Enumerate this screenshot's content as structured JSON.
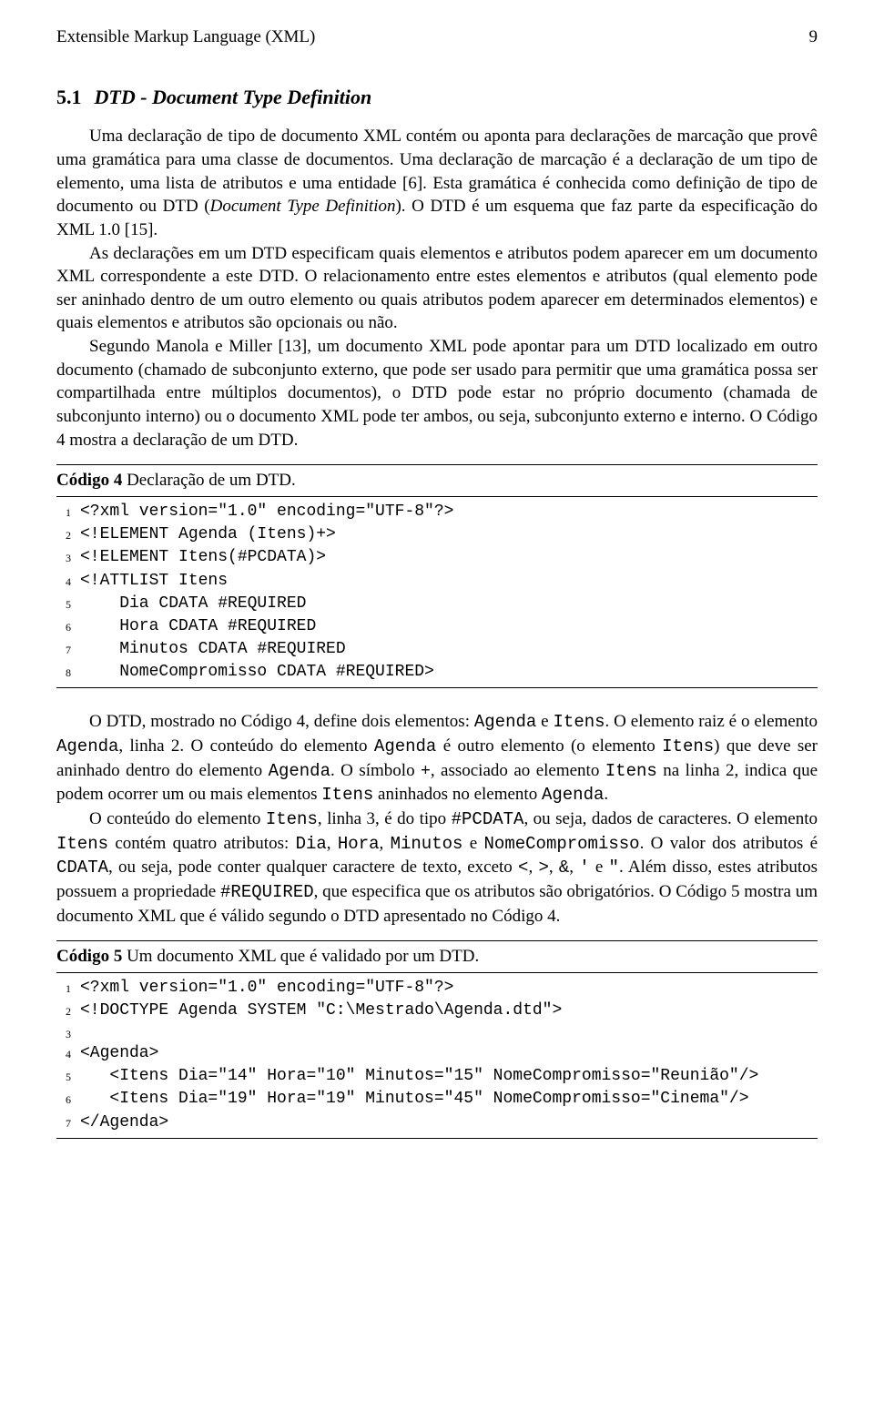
{
  "header": {
    "title": "Extensible Markup Language (XML)",
    "page": "9"
  },
  "section": {
    "number": "5.1",
    "title": "DTD - Document Type Definition"
  },
  "p1_a": "Uma declaração de tipo de documento XML contém ou aponta para declarações de marcação que provê uma gramática para uma classe de documentos. Uma declaração de marcação é a declaração de um tipo de elemento, uma lista de atributos e uma entidade [6]. Esta gramática é conhecida como definição de tipo de documento ou DTD (",
  "p1_b": "Document Type Definition",
  "p1_c": "). O DTD é um esquema que faz parte da especificação do XML 1.0 [15].",
  "p2": "As declarações em um DTD especificam quais elementos e atributos podem aparecer em um documento XML correspondente a este DTD. O relacionamento entre estes elementos e atributos (qual elemento pode ser aninhado dentro de um outro elemento ou quais atributos podem aparecer em determinados elementos) e quais elementos e atributos são opcionais ou não.",
  "p3": "Segundo Manola e Miller [13], um documento XML pode apontar para um DTD localizado em outro documento (chamado de subconjunto externo, que pode ser usado para permitir que uma gramática possa ser compartilhada entre múltiplos documentos), o DTD pode estar no próprio documento (chamada de subconjunto interno) ou o documento XML pode ter ambos, ou seja, subconjunto externo e interno. O Código 4 mostra a declaração de um DTD.",
  "code4": {
    "caption_bold": "Código 4",
    "caption_rest": " Declaração de um DTD.",
    "lines": [
      "<?xml version=\"1.0\" encoding=\"UTF-8\"?>",
      "<!ELEMENT Agenda (Itens)+>",
      "<!ELEMENT Itens(#PCDATA)>",
      "<!ATTLIST Itens",
      "    Dia CDATA #REQUIRED",
      "    Hora CDATA #REQUIRED",
      "    Minutos CDATA #REQUIRED",
      "    NomeCompromisso CDATA #REQUIRED>"
    ]
  },
  "p4_parts": [
    {
      "t": "O DTD, mostrado no Código 4, define dois elementos: "
    },
    {
      "m": "Agenda"
    },
    {
      "t": " e "
    },
    {
      "m": "Itens"
    },
    {
      "t": ". O elemento raiz é o elemento "
    },
    {
      "m": "Agenda"
    },
    {
      "t": ", linha 2. O conteúdo do elemento "
    },
    {
      "m": "Agenda"
    },
    {
      "t": " é outro elemento (o elemento "
    },
    {
      "m": "Itens"
    },
    {
      "t": ") que deve ser aninhado dentro do elemento "
    },
    {
      "m": "Agenda"
    },
    {
      "t": ". O símbolo "
    },
    {
      "b": "+"
    },
    {
      "t": ", associado ao elemento "
    },
    {
      "m": "Itens"
    },
    {
      "t": " na linha 2, indica que podem ocorrer um ou mais elementos "
    },
    {
      "m": "Itens"
    },
    {
      "t": " aninhados no elemento "
    },
    {
      "m": "Agenda"
    },
    {
      "t": "."
    }
  ],
  "p5_parts": [
    {
      "t": "O conteúdo do elemento "
    },
    {
      "m": "Itens"
    },
    {
      "t": ", linha 3, é do tipo "
    },
    {
      "m": "#PCDATA"
    },
    {
      "t": ", ou seja, dados de caracteres.  O elemento "
    },
    {
      "m": "Itens"
    },
    {
      "t": " contém quatro atributos: "
    },
    {
      "m": "Dia"
    },
    {
      "t": ", "
    },
    {
      "m": "Hora"
    },
    {
      "t": ", "
    },
    {
      "m": "Minutos"
    },
    {
      "t": " e "
    },
    {
      "m": "NomeCompromisso"
    },
    {
      "t": ". O valor dos atributos é "
    },
    {
      "m": "CDATA"
    },
    {
      "t": ", ou seja, pode conter qualquer caractere de texto, exceto "
    },
    {
      "m": "<"
    },
    {
      "t": ", "
    },
    {
      "m": ">"
    },
    {
      "t": ", "
    },
    {
      "m": "&"
    },
    {
      "t": ", "
    },
    {
      "m": "'"
    },
    {
      "t": " e "
    },
    {
      "m": "\""
    },
    {
      "t": ".  Além disso, estes atributos possuem a propriedade "
    },
    {
      "m": "#REQUIRED"
    },
    {
      "t": ", que especifica que os atributos são obrigatórios. O Código 5 mostra um documento XML que é válido segundo o DTD apresentado no Código 4."
    }
  ],
  "code5": {
    "caption_bold": "Código 5",
    "caption_rest": " Um documento XML que é validado por um DTD.",
    "lines": [
      "<?xml version=\"1.0\" encoding=\"UTF-8\"?>",
      "<!DOCTYPE Agenda SYSTEM \"C:\\Mestrado\\Agenda.dtd\">",
      "",
      "<Agenda>",
      "   <Itens Dia=\"14\" Hora=\"10\" Minutos=\"15\" NomeCompromisso=\"Reunião\"/>",
      "   <Itens Dia=\"19\" Hora=\"19\" Minutos=\"45\" NomeCompromisso=\"Cinema\"/>",
      "</Agenda>"
    ]
  }
}
